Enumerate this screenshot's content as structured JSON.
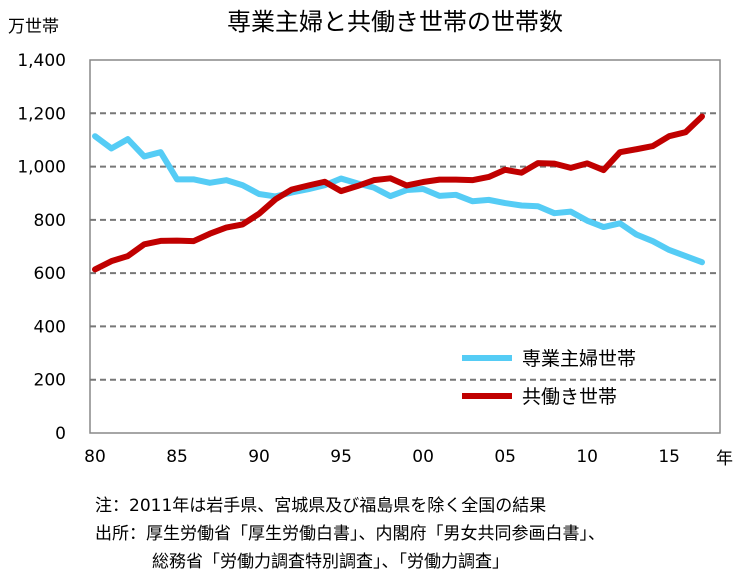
{
  "chart_data": {
    "type": "line",
    "title": "専業主婦と共働き世帯の世帯数",
    "ylabel": "万世帯",
    "xlabel": "年",
    "ylim": [
      0,
      1400
    ],
    "yticks": [
      0,
      200,
      400,
      600,
      800,
      1000,
      1200,
      1400
    ],
    "ytick_labels": [
      "0",
      "200",
      "400",
      "600",
      "800",
      "1,000",
      "1,200",
      "1,400"
    ],
    "xticks": [
      1980,
      1985,
      1990,
      1995,
      2000,
      2005,
      2010,
      2015
    ],
    "xtick_labels": [
      "80",
      "85",
      "90",
      "95",
      "00",
      "05",
      "10",
      "15"
    ],
    "grid": true,
    "legend_position": "bottom-right",
    "x": [
      1980,
      1981,
      1982,
      1983,
      1984,
      1985,
      1986,
      1987,
      1988,
      1989,
      1990,
      1991,
      1992,
      1993,
      1994,
      1995,
      1996,
      1997,
      1998,
      1999,
      2000,
      2001,
      2002,
      2003,
      2004,
      2005,
      2006,
      2007,
      2008,
      2009,
      2010,
      2011,
      2012,
      2013,
      2014,
      2015,
      2016,
      2017
    ],
    "series": [
      {
        "name": "専業主婦世帯",
        "color": "#55ccf5",
        "values": [
          1114,
          1068,
          1103,
          1038,
          1054,
          952,
          952,
          939,
          949,
          930,
          897,
          888,
          903,
          915,
          930,
          955,
          937,
          921,
          889,
          912,
          916,
          890,
          894,
          870,
          875,
          863,
          854,
          851,
          825,
          831,
          797,
          773,
          787,
          745,
          720,
          687,
          664,
          641
        ]
      },
      {
        "name": "共働き世帯",
        "color": "#c00000",
        "values": [
          614,
          645,
          664,
          708,
          721,
          722,
          720,
          748,
          771,
          783,
          823,
          877,
          914,
          929,
          943,
          908,
          927,
          949,
          956,
          929,
          942,
          951,
          951,
          949,
          961,
          988,
          977,
          1013,
          1011,
          995,
          1012,
          987,
          1054,
          1065,
          1077,
          1114,
          1129,
          1188
        ]
      }
    ]
  },
  "notes": {
    "line1": "注：2011年は岩手県、宮城県及び福島県を除く全国の結果",
    "line2": "出所：厚生労働省「厚生労働白書」、内閣府「男女共同参画白書」、",
    "line3": "総務省「労働力調査特別調査」、「労働力調査」"
  }
}
